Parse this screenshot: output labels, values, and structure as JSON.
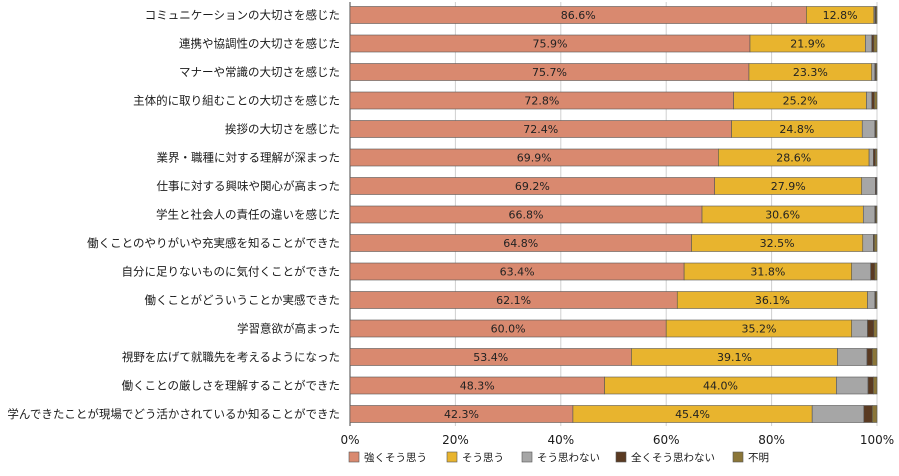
{
  "chart_data": {
    "type": "bar",
    "orientation": "horizontal",
    "stacked": true,
    "percent_axis": true,
    "categories": [
      "コミュニケーションの大切さを感じた",
      "連携や協調性の大切さを感じた",
      "マナーや常識の大切さを感じた",
      "主体的に取り組むことの大切さを感じた",
      "挨拶の大切さを感じた",
      "業界・職種に対する理解が深まった",
      "仕事に対する興味や関心が高まった",
      "学生と社会人の責任の違いを感じた",
      "働くことのやりがいや充実感を知ることができた",
      "自分に足りないものに気付くことができた",
      "働くことがどういうことか実感できた",
      "学習意欲が高まった",
      "視野を広げて就職先を考えるようになった",
      "働くことの厳しさを理解することができた",
      "学んできたことが現場でどう活かされているか知ることができた"
    ],
    "series": [
      {
        "name": "強くそう思う",
        "color": "#d9896f",
        "labeled": true,
        "values": [
          86.6,
          75.9,
          75.7,
          72.8,
          72.4,
          69.9,
          69.2,
          66.8,
          64.8,
          63.4,
          62.1,
          60.0,
          53.4,
          48.3,
          42.3
        ],
        "labels": [
          "86.6%",
          "75.9%",
          "75.7%",
          "72.8%",
          "72.4%",
          "69.9%",
          "69.2%",
          "66.8%",
          "64.8%",
          "63.4%",
          "62.1%",
          "60.0%",
          "53.4%",
          "48.3%",
          "42.3%"
        ]
      },
      {
        "name": "そう思う",
        "color": "#e8b42e",
        "labeled": true,
        "values": [
          12.8,
          21.9,
          23.3,
          25.2,
          24.8,
          28.6,
          27.9,
          30.6,
          32.5,
          31.8,
          36.1,
          35.2,
          39.1,
          44.0,
          45.4
        ],
        "labels": [
          "12.8%",
          "21.9%",
          "23.3%",
          "25.2%",
          "24.8%",
          "28.6%",
          "27.9%",
          "30.6%",
          "32.5%",
          "31.8%",
          "36.1%",
          "35.2%",
          "39.1%",
          "44.0%",
          "45.4%"
        ]
      },
      {
        "name": "そう思わない",
        "color": "#a6a6a6",
        "labeled": false,
        "values": [
          0.2,
          1.2,
          0.6,
          1.0,
          2.4,
          0.8,
          2.6,
          2.2,
          2.0,
          3.6,
          1.4,
          3.0,
          5.6,
          6.0,
          9.8
        ]
      },
      {
        "name": "全くそう思わない",
        "color": "#5a3a22",
        "labeled": false,
        "values": [
          0.2,
          0.4,
          0.2,
          0.5,
          0.2,
          0.4,
          0.2,
          0.2,
          0.2,
          0.8,
          0.2,
          1.2,
          1.0,
          1.0,
          1.6
        ]
      },
      {
        "name": "不明",
        "color": "#8b7638",
        "labeled": false,
        "values": [
          0.2,
          0.6,
          0.2,
          0.5,
          0.2,
          0.3,
          0.1,
          0.2,
          0.5,
          0.4,
          0.2,
          0.6,
          0.9,
          0.7,
          0.9
        ]
      }
    ],
    "xlim": [
      0,
      100
    ],
    "xticks": [
      "0%",
      "20%",
      "40%",
      "60%",
      "80%",
      "100%"
    ],
    "grid": true,
    "legend_position": "bottom",
    "title": "",
    "xlabel": "",
    "ylabel": ""
  }
}
